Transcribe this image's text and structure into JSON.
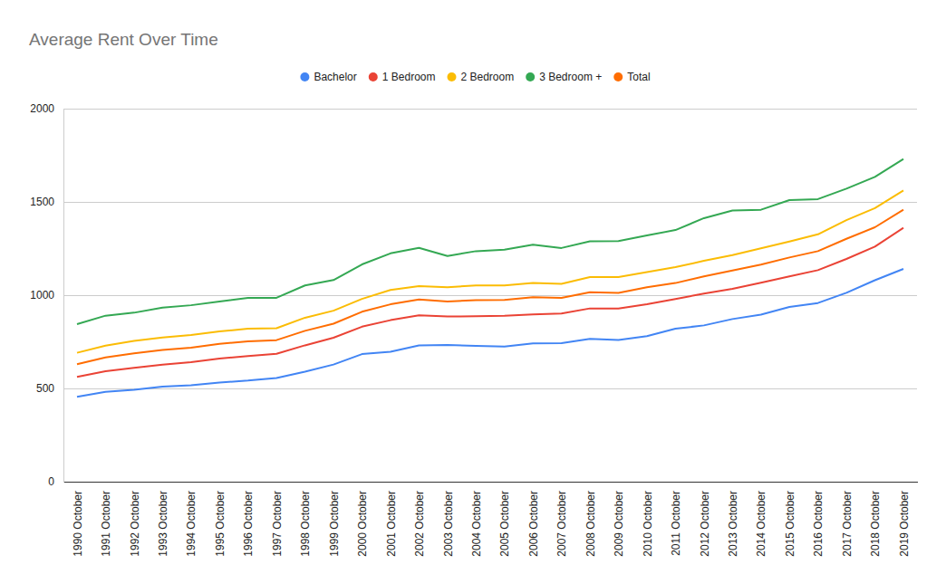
{
  "chart_data": {
    "type": "line",
    "title": "Average Rent Over Time",
    "categories": [
      "1990 October",
      "1991 October",
      "1992 October",
      "1993 October",
      "1994 October",
      "1995 October",
      "1996 October",
      "1997 October",
      "1998 October",
      "1999 October",
      "2000 October",
      "2001 October",
      "2002 October",
      "2003 October",
      "2004 October",
      "2005 October",
      "2006 October",
      "2007 October",
      "2008 October",
      "2009 October",
      "2010 October",
      "2011 October",
      "2012 October",
      "2013 October",
      "2014 October",
      "2015 October",
      "2016 October",
      "2017 October",
      "2018 October",
      "2019 October"
    ],
    "series": [
      {
        "name": "Bachelor",
        "color": "#4285f4",
        "values": [
          455,
          482,
          493,
          510,
          517,
          532,
          542,
          556,
          590,
          628,
          684,
          697,
          731,
          733,
          728,
          724,
          742,
          743,
          766,
          760,
          780,
          820,
          838,
          872,
          896,
          937,
          958,
          1013,
          1080,
          1141
        ]
      },
      {
        "name": "1 Bedroom",
        "color": "#ea4335",
        "values": [
          562,
          592,
          610,
          627,
          641,
          660,
          674,
          686,
          731,
          772,
          831,
          866,
          892,
          886,
          887,
          889,
          897,
          902,
          929,
          928,
          951,
          979,
          1009,
          1034,
          1067,
          1101,
          1134,
          1194,
          1260,
          1361
        ]
      },
      {
        "name": "2 Bedroom",
        "color": "#fbbc04",
        "values": [
          691,
          729,
          755,
          773,
          786,
          806,
          820,
          823,
          879,
          917,
          980,
          1028,
          1049,
          1043,
          1052,
          1052,
          1066,
          1061,
          1097,
          1097,
          1124,
          1150,
          1184,
          1215,
          1251,
          1288,
          1326,
          1402,
          1467,
          1561
        ]
      },
      {
        "name": "3 Bedroom +",
        "color": "#34a853",
        "values": [
          845,
          890,
          906,
          933,
          946,
          966,
          986,
          986,
          1052,
          1081,
          1165,
          1224,
          1254,
          1210,
          1236,
          1244,
          1271,
          1253,
          1289,
          1290,
          1320,
          1349,
          1413,
          1454,
          1458,
          1510,
          1515,
          1571,
          1634,
          1730
        ]
      },
      {
        "name": "Total",
        "color": "#ff6d01",
        "values": [
          630,
          666,
          688,
          706,
          719,
          739,
          753,
          759,
          809,
          847,
          911,
          951,
          977,
          966,
          973,
          974,
          989,
          985,
          1016,
          1012,
          1042,
          1065,
          1101,
          1132,
          1164,
          1202,
          1236,
          1302,
          1364,
          1458
        ]
      }
    ],
    "ylim": [
      0,
      2000
    ],
    "yticks": [
      0,
      500,
      1000,
      1500,
      2000
    ],
    "grid": true,
    "legend": "top"
  }
}
